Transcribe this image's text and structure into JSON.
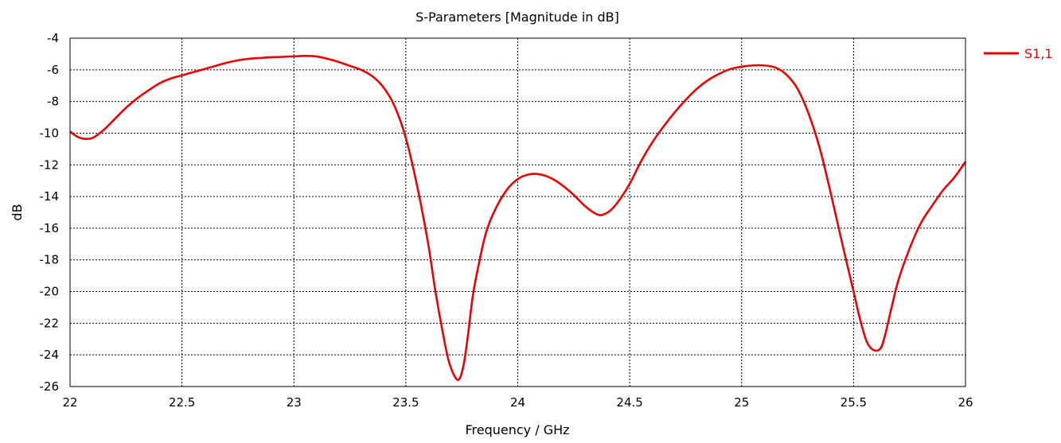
{
  "chart_data": {
    "type": "line",
    "title": "S-Parameters [Magnitude in dB]",
    "xlabel": "Frequency / GHz",
    "ylabel": "dB",
    "xlim": [
      22,
      26
    ],
    "ylim": [
      -26,
      -4
    ],
    "xticks": [
      "22",
      "22.5",
      "23",
      "23.5",
      "24",
      "24.5",
      "25",
      "25.5",
      "26"
    ],
    "yticks": [
      "-4",
      "-6",
      "-8",
      "-10",
      "-12",
      "-14",
      "-16",
      "-18",
      "-20",
      "-22",
      "-24",
      "-26"
    ],
    "grid": true,
    "legend_position": "top-right",
    "series": [
      {
        "name": "S1,1",
        "color": "#ee0000",
        "x": [
          22.0,
          22.03,
          22.06,
          22.1,
          22.15,
          22.2,
          22.25,
          22.3,
          22.35,
          22.4,
          22.45,
          22.5,
          22.55,
          22.6,
          22.65,
          22.7,
          22.75,
          22.8,
          22.85,
          22.9,
          22.95,
          23.0,
          23.05,
          23.1,
          23.15,
          23.2,
          23.25,
          23.3,
          23.35,
          23.4,
          23.45,
          23.5,
          23.55,
          23.6,
          23.63,
          23.66,
          23.69,
          23.72,
          23.74,
          23.76,
          23.78,
          23.8,
          23.83,
          23.86,
          23.9,
          23.95,
          24.0,
          24.05,
          24.1,
          24.15,
          24.2,
          24.25,
          24.3,
          24.35,
          24.38,
          24.42,
          24.46,
          24.5,
          24.55,
          24.6,
          24.65,
          24.7,
          24.75,
          24.8,
          24.85,
          24.9,
          24.95,
          25.0,
          25.05,
          25.1,
          25.15,
          25.2,
          25.25,
          25.3,
          25.35,
          25.4,
          25.45,
          25.5,
          25.53,
          25.56,
          25.59,
          25.62,
          25.64,
          25.67,
          25.7,
          25.75,
          25.8,
          25.85,
          25.9,
          25.95,
          26.0
        ],
        "y": [
          -9.9,
          -10.2,
          -10.35,
          -10.3,
          -9.8,
          -9.1,
          -8.4,
          -7.8,
          -7.3,
          -6.85,
          -6.55,
          -6.35,
          -6.15,
          -5.95,
          -5.75,
          -5.55,
          -5.4,
          -5.3,
          -5.25,
          -5.2,
          -5.18,
          -5.15,
          -5.12,
          -5.15,
          -5.3,
          -5.5,
          -5.75,
          -6.0,
          -6.4,
          -7.1,
          -8.3,
          -10.3,
          -13.3,
          -17.0,
          -19.8,
          -22.2,
          -24.3,
          -25.4,
          -25.5,
          -24.5,
          -22.5,
          -20.2,
          -18.0,
          -16.2,
          -14.8,
          -13.6,
          -12.9,
          -12.6,
          -12.6,
          -12.85,
          -13.3,
          -13.9,
          -14.6,
          -15.1,
          -15.15,
          -14.8,
          -14.1,
          -13.2,
          -11.8,
          -10.6,
          -9.6,
          -8.7,
          -7.9,
          -7.2,
          -6.65,
          -6.25,
          -5.95,
          -5.8,
          -5.72,
          -5.72,
          -5.85,
          -6.3,
          -7.2,
          -8.8,
          -11.0,
          -13.9,
          -17.0,
          -20.0,
          -21.8,
          -23.2,
          -23.7,
          -23.6,
          -22.8,
          -21.0,
          -19.3,
          -17.3,
          -15.7,
          -14.6,
          -13.6,
          -12.8,
          -11.8
        ]
      }
    ]
  }
}
